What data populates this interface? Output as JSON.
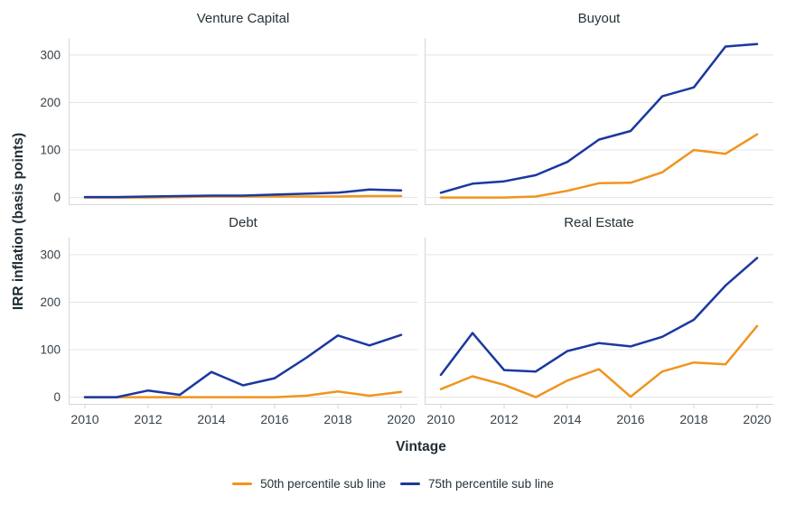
{
  "chart_data": {
    "type": "line",
    "title": "",
    "xlabel": "Vintage",
    "ylabel": "IRR inflation (basis points)",
    "x": [
      2010,
      2011,
      2012,
      2013,
      2014,
      2015,
      2016,
      2017,
      2018,
      2019,
      2020
    ],
    "xlim": [
      2010,
      2020
    ],
    "ylim": [
      -16,
      336
    ],
    "y_ticks": [
      0,
      100,
      200,
      300
    ],
    "y_tick_labels": [
      "0",
      "100",
      "200",
      "300"
    ],
    "x_tick_years": [
      2010,
      2012,
      2014,
      2016,
      2018,
      2020
    ],
    "x_tick_labels": [
      "2010",
      "2012",
      "2014",
      "2016",
      "2018",
      "2020"
    ],
    "grid": "horizontal-only",
    "legend_position": "bottom",
    "series_colors": {
      "p50": "#f0941f",
      "p75": "#1b38a0"
    },
    "legend": [
      {
        "key": "p50",
        "label": "50th percentile sub line",
        "color": "#f0941f"
      },
      {
        "key": "p75",
        "label": "75th percentile sub line",
        "color": "#1b38a0"
      }
    ],
    "panels": [
      {
        "title": "Venture Capital",
        "series": [
          {
            "key": "p50",
            "name": "50th percentile sub line",
            "values": [
              0,
              0,
              0,
              1,
              2,
              2,
              2,
              2,
              2,
              3,
              3
            ]
          },
          {
            "key": "p75",
            "name": "75th percentile sub line",
            "values": [
              1,
              1,
              2,
              3,
              4,
              4,
              6,
              8,
              10,
              17,
              15
            ]
          }
        ]
      },
      {
        "title": "Buyout",
        "series": [
          {
            "key": "p50",
            "name": "50th percentile sub line",
            "values": [
              0,
              0,
              0,
              2,
              14,
              30,
              31,
              53,
              100,
              92,
              133
            ]
          },
          {
            "key": "p75",
            "name": "75th percentile sub line",
            "values": [
              10,
              29,
              34,
              47,
              75,
              122,
              140,
              213,
              232,
              318,
              323
            ]
          }
        ]
      },
      {
        "title": "Debt",
        "series": [
          {
            "key": "p50",
            "name": "50th percentile sub line",
            "values": [
              0,
              0,
              0,
              0,
              0,
              0,
              0,
              3,
              12,
              3,
              11
            ]
          },
          {
            "key": "p75",
            "name": "75th percentile sub line",
            "values": [
              0,
              0,
              14,
              5,
              53,
              25,
              40,
              83,
              130,
              109,
              131
            ]
          }
        ]
      },
      {
        "title": "Real Estate",
        "series": [
          {
            "key": "p50",
            "name": "50th percentile sub line",
            "values": [
              17,
              44,
              26,
              0,
              35,
              59,
              1,
              54,
              73,
              69,
              150
            ]
          },
          {
            "key": "p75",
            "name": "75th percentile sub line",
            "values": [
              47,
              135,
              57,
              54,
              97,
              114,
              107,
              127,
              163,
              235,
              293
            ]
          }
        ]
      }
    ]
  }
}
